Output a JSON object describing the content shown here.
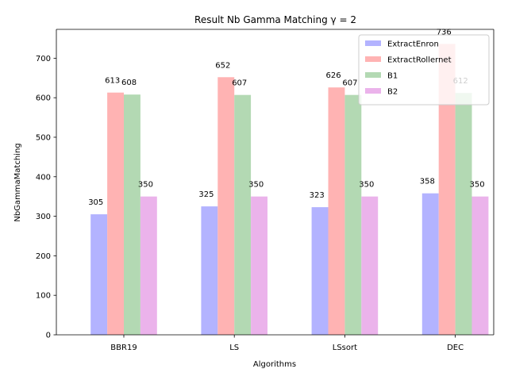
{
  "chart_data": {
    "type": "bar",
    "title": "Result Nb Gamma Matching γ = 2",
    "xlabel": "Algorithms",
    "ylabel": "NbGammaMatching",
    "categories": [
      "BBR19",
      "LS",
      "LSsort",
      "DEC"
    ],
    "ylim": [
      0,
      773
    ],
    "yticks": [
      0,
      100,
      200,
      300,
      400,
      500,
      600,
      700
    ],
    "grid": false,
    "legend_position": "top-right",
    "series": [
      {
        "name": "ExtractEnron",
        "values": [
          305,
          325,
          323,
          358
        ],
        "color": "#b3b3ff"
      },
      {
        "name": "ExtractRollernet",
        "values": [
          613,
          652,
          626,
          736
        ],
        "color": "#ffb3b3"
      },
      {
        "name": "B1",
        "values": [
          608,
          607,
          607,
          612
        ],
        "color": "#b3d9b3"
      },
      {
        "name": "B2",
        "values": [
          350,
          350,
          350,
          350
        ],
        "color": "#ebb3eb"
      }
    ]
  }
}
